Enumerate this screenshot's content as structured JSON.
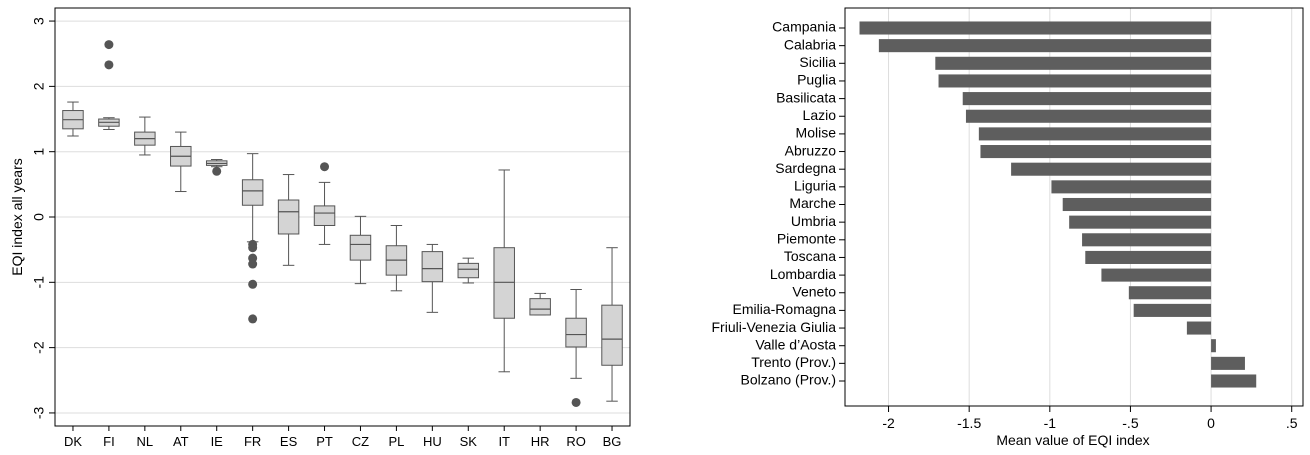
{
  "chart_data": [
    {
      "type": "box",
      "title": "",
      "xlabel": "",
      "ylabel": "EQI index all years",
      "ylim": [
        -3.2,
        3.2
      ],
      "yticks": [
        -3,
        -2,
        -1,
        0,
        1,
        2,
        3
      ],
      "grid": true,
      "colors": {
        "box_fill": "#d4d4d4",
        "stroke": "#555555",
        "outlier": "#555555",
        "grid": "#dddddd"
      },
      "categories": [
        "DK",
        "FI",
        "NL",
        "AT",
        "IE",
        "FR",
        "ES",
        "PT",
        "CZ",
        "PL",
        "HU",
        "SK",
        "IT",
        "HR",
        "RO",
        "BG"
      ],
      "boxes": [
        {
          "label": "DK",
          "min": 1.24,
          "q1": 1.35,
          "median": 1.49,
          "q3": 1.63,
          "max": 1.76,
          "outliers": []
        },
        {
          "label": "FI",
          "min": 1.34,
          "q1": 1.39,
          "median": 1.45,
          "q3": 1.5,
          "max": 1.52,
          "outliers": [
            2.64,
            2.33
          ]
        },
        {
          "label": "NL",
          "min": 0.95,
          "q1": 1.1,
          "median": 1.2,
          "q3": 1.3,
          "max": 1.53,
          "outliers": []
        },
        {
          "label": "AT",
          "min": 0.39,
          "q1": 0.78,
          "median": 0.93,
          "q3": 1.08,
          "max": 1.3,
          "outliers": []
        },
        {
          "label": "IE",
          "min": 0.77,
          "q1": 0.79,
          "median": 0.82,
          "q3": 0.86,
          "max": 0.88,
          "outliers": [
            0.7
          ]
        },
        {
          "label": "FR",
          "min": -0.38,
          "q1": 0.18,
          "median": 0.4,
          "q3": 0.57,
          "max": 0.97,
          "outliers": [
            -0.42,
            -0.47,
            -0.63,
            -0.72,
            -1.03,
            -1.56
          ]
        },
        {
          "label": "ES",
          "min": -0.74,
          "q1": -0.26,
          "median": 0.08,
          "q3": 0.26,
          "max": 0.65,
          "outliers": []
        },
        {
          "label": "PT",
          "min": -0.42,
          "q1": -0.13,
          "median": 0.06,
          "q3": 0.17,
          "max": 0.53,
          "outliers": [
            0.77
          ]
        },
        {
          "label": "CZ",
          "min": -1.02,
          "q1": -0.66,
          "median": -0.42,
          "q3": -0.28,
          "max": 0.01,
          "outliers": []
        },
        {
          "label": "PL",
          "min": -1.13,
          "q1": -0.89,
          "median": -0.66,
          "q3": -0.44,
          "max": -0.13,
          "outliers": []
        },
        {
          "label": "HU",
          "min": -1.46,
          "q1": -0.99,
          "median": -0.79,
          "q3": -0.53,
          "max": -0.42,
          "outliers": []
        },
        {
          "label": "SK",
          "min": -1.01,
          "q1": -0.93,
          "median": -0.8,
          "q3": -0.71,
          "max": -0.63,
          "outliers": []
        },
        {
          "label": "IT",
          "min": -2.37,
          "q1": -1.55,
          "median": -1.0,
          "q3": -0.47,
          "max": 0.72,
          "outliers": []
        },
        {
          "label": "HR",
          "min": -1.5,
          "q1": -1.5,
          "median": -1.41,
          "q3": -1.25,
          "max": -1.17,
          "outliers": []
        },
        {
          "label": "RO",
          "min": -2.47,
          "q1": -1.99,
          "median": -1.8,
          "q3": -1.55,
          "max": -1.11,
          "outliers": [
            -2.84
          ]
        },
        {
          "label": "BG",
          "min": -2.82,
          "q1": -2.27,
          "median": -1.87,
          "q3": -1.35,
          "max": -0.47,
          "outliers": []
        }
      ]
    },
    {
      "type": "bar",
      "orientation": "horizontal",
      "title": "",
      "xlabel": "Mean value of EQI index",
      "ylabel": "",
      "xlim": [
        -2.27,
        0.57
      ],
      "xticks": [
        -2,
        -1.5,
        -1,
        -0.5,
        0,
        0.5
      ],
      "xtick_labels": [
        "-2",
        "-1.5",
        "-1",
        "-.5",
        "0",
        ".5"
      ],
      "grid": true,
      "colors": {
        "bar": "#5e5e5e",
        "grid": "#dddddd"
      },
      "categories": [
        "Campania",
        "Calabria",
        "Sicilia",
        "Puglia",
        "Basilicata",
        "Lazio",
        "Molise",
        "Abruzzo",
        "Sardegna",
        "Liguria",
        "Marche",
        "Umbria",
        "Piemonte",
        "Toscana",
        "Lombardia",
        "Veneto",
        "Emilia-Romagna",
        "Friuli-Venezia Giulia",
        "Valle d’Aosta",
        "Trento (Prov.)",
        "Bolzano (Prov.)"
      ],
      "values": [
        -2.18,
        -2.06,
        -1.71,
        -1.69,
        -1.54,
        -1.52,
        -1.44,
        -1.43,
        -1.24,
        -0.99,
        -0.92,
        -0.88,
        -0.8,
        -0.78,
        -0.68,
        -0.51,
        -0.48,
        -0.15,
        0.03,
        0.21,
        0.28
      ]
    }
  ]
}
